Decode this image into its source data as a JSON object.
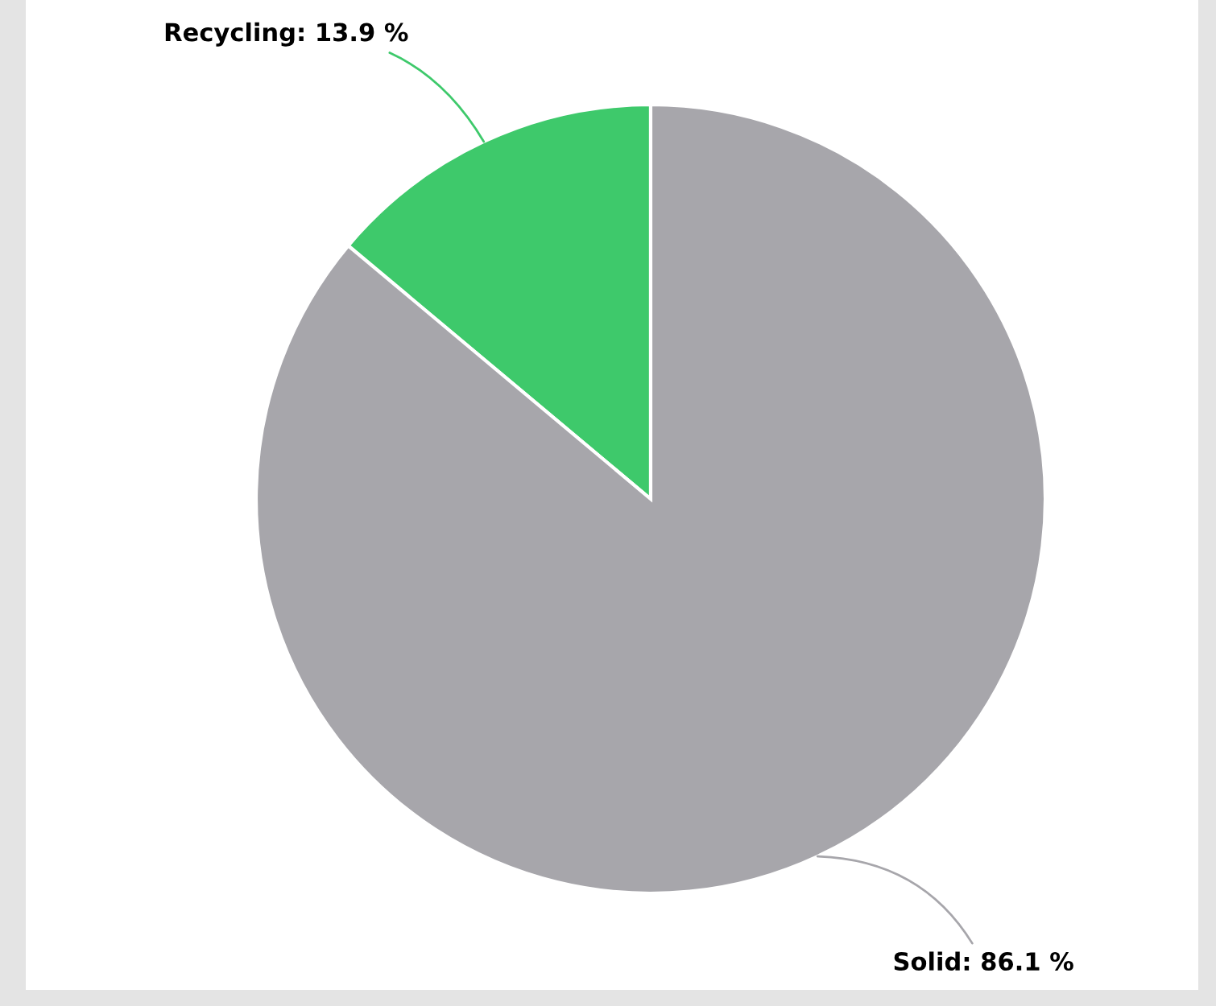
{
  "chart_data": {
    "type": "pie",
    "categories": [
      "Recycling",
      "Solid"
    ],
    "values": [
      13.9,
      86.1
    ],
    "colors": [
      "#3ec96b",
      "#a7a6ab"
    ],
    "value_labels": [
      "13.9 %",
      "86.1 %"
    ]
  }
}
